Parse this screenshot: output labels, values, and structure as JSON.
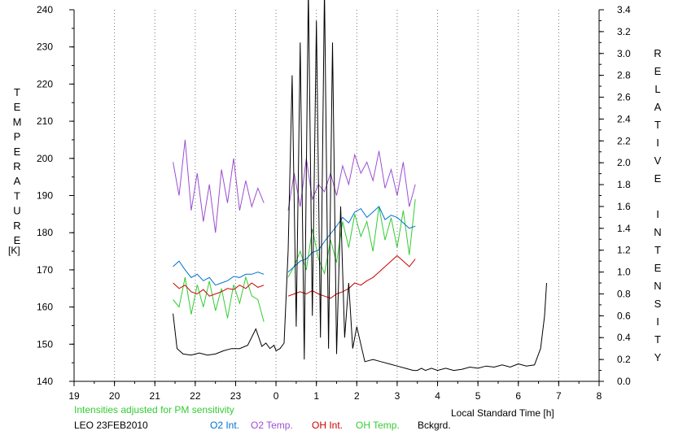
{
  "chart_data": {
    "type": "line",
    "xlabel": "Local Standard Time [h]",
    "ylabel_left": "TEMPERATURE",
    "ylabel_left_unit": "[K]",
    "ylabel_right": "RELATIVE INTENSITY",
    "note": "Intensities adjusted for PM sensitivity",
    "site_date": "LEO 23FEB2010",
    "x_ticks": [
      "19",
      "20",
      "21",
      "22",
      "23",
      "0",
      "1",
      "2",
      "3",
      "4",
      "5",
      "6",
      "7",
      "8"
    ],
    "x_range": [
      19,
      32
    ],
    "y_left_ticks": [
      "140",
      "150",
      "160",
      "170",
      "180",
      "190",
      "200",
      "210",
      "220",
      "230",
      "240"
    ],
    "y_left_range": [
      140,
      240
    ],
    "y_right_ticks": [
      "0.0",
      "0.2",
      "0.4",
      "0.6",
      "0.8",
      "1.0",
      "1.2",
      "1.4",
      "1.6",
      "1.8",
      "2.0",
      "2.2",
      "2.4",
      "2.6",
      "2.8",
      "3.0",
      "3.2",
      "3.4"
    ],
    "y_right_range": [
      0,
      3.4
    ],
    "grid": "vertical dotted at each hour",
    "legend": [
      {
        "label": "O2 Int.",
        "color": "#0070d0"
      },
      {
        "label": "O2 Temp.",
        "color": "#9b4fd0"
      },
      {
        "label": "OH Int.",
        "color": "#cc0000"
      },
      {
        "label": "OH Temp.",
        "color": "#33cc33"
      },
      {
        "label": "Bckgrd.",
        "color": "#000000"
      }
    ],
    "note_color": "#33cc33",
    "series": [
      {
        "name": "O2 Temp.",
        "color": "#9b4fd0",
        "axis": "left",
        "x": [
          21.45,
          21.6,
          21.75,
          21.9,
          22.05,
          22.2,
          22.35,
          22.5,
          22.65,
          22.8,
          22.95,
          23.1,
          23.25,
          23.4,
          23.55,
          23.7,
          24.3,
          24.45,
          24.6,
          24.75,
          24.9,
          25.05,
          25.2,
          25.35,
          25.5,
          25.65,
          25.8,
          25.95,
          26.1,
          26.25,
          26.4,
          26.55,
          26.7,
          26.85,
          27.0,
          27.15,
          27.3,
          27.45
        ],
        "y": [
          199,
          190,
          205,
          186,
          196,
          183,
          193,
          180,
          197,
          188,
          200,
          186,
          194,
          187,
          192,
          188,
          186,
          196,
          187,
          200,
          189,
          193,
          191,
          196,
          190,
          198,
          193,
          201,
          196,
          199,
          194,
          202,
          192,
          197,
          190,
          199,
          187,
          193
        ]
      },
      {
        "name": "OH Temp.",
        "color": "#33cc33",
        "axis": "left",
        "x": [
          21.45,
          21.6,
          21.75,
          21.9,
          22.05,
          22.2,
          22.35,
          22.5,
          22.65,
          22.8,
          22.95,
          23.1,
          23.25,
          23.4,
          23.55,
          23.7,
          24.3,
          24.45,
          24.6,
          24.75,
          24.9,
          25.05,
          25.2,
          25.35,
          25.5,
          25.65,
          25.8,
          25.95,
          26.1,
          26.25,
          26.4,
          26.55,
          26.7,
          26.85,
          27.0,
          27.15,
          27.3,
          27.45
        ],
        "y": [
          162,
          160,
          168,
          158,
          166,
          160,
          167,
          159,
          165,
          157,
          166,
          161,
          168,
          163,
          162,
          156,
          168,
          171,
          175,
          170,
          181,
          173,
          169,
          178,
          172,
          183,
          176,
          185,
          179,
          183,
          175,
          187,
          178,
          184,
          176,
          186,
          174,
          189
        ]
      },
      {
        "name": "O2 Int.",
        "color": "#0070d0",
        "axis": "right",
        "x": [
          21.45,
          21.6,
          21.75,
          21.9,
          22.05,
          22.2,
          22.35,
          22.5,
          22.65,
          22.8,
          22.95,
          23.1,
          23.25,
          23.4,
          23.55,
          23.7,
          24.3,
          24.45,
          24.6,
          24.75,
          24.9,
          25.05,
          25.2,
          25.35,
          25.5,
          25.65,
          25.8,
          25.95,
          26.1,
          26.25,
          26.4,
          26.55,
          26.7,
          26.85,
          27.0,
          27.15,
          27.3,
          27.45
        ],
        "y": [
          1.05,
          1.1,
          1.02,
          0.95,
          0.98,
          0.92,
          0.95,
          0.88,
          0.9,
          0.92,
          0.96,
          0.95,
          0.98,
          0.98,
          1.0,
          0.98,
          1.0,
          1.05,
          1.1,
          1.12,
          1.18,
          1.2,
          1.28,
          1.35,
          1.42,
          1.5,
          1.45,
          1.55,
          1.58,
          1.5,
          1.55,
          1.6,
          1.48,
          1.52,
          1.5,
          1.45,
          1.4,
          1.42
        ]
      },
      {
        "name": "OH Int.",
        "color": "#cc0000",
        "axis": "right",
        "x": [
          21.45,
          21.6,
          21.75,
          21.9,
          22.05,
          22.2,
          22.35,
          22.5,
          22.65,
          22.8,
          22.95,
          23.1,
          23.25,
          23.4,
          23.55,
          23.7,
          24.3,
          24.45,
          24.6,
          24.75,
          24.9,
          25.05,
          25.2,
          25.35,
          25.5,
          25.65,
          25.8,
          25.95,
          26.1,
          26.25,
          26.4,
          26.55,
          26.7,
          26.85,
          27.0,
          27.15,
          27.3,
          27.45
        ],
        "y": [
          0.9,
          0.85,
          0.88,
          0.82,
          0.8,
          0.84,
          0.78,
          0.8,
          0.82,
          0.85,
          0.84,
          0.88,
          0.85,
          0.9,
          0.86,
          0.88,
          0.78,
          0.8,
          0.82,
          0.8,
          0.83,
          0.8,
          0.78,
          0.76,
          0.8,
          0.82,
          0.85,
          0.9,
          0.88,
          0.92,
          0.95,
          1.0,
          1.05,
          1.1,
          1.15,
          1.1,
          1.05,
          1.12
        ]
      },
      {
        "name": "Bckgrd.",
        "color": "#000000",
        "axis": "right",
        "x": [
          21.45,
          21.55,
          21.7,
          21.9,
          22.1,
          22.3,
          22.5,
          22.7,
          22.9,
          23.1,
          23.3,
          23.5,
          23.65,
          23.75,
          23.85,
          23.95,
          24.0,
          24.1,
          24.2,
          24.3,
          24.4,
          24.5,
          24.6,
          24.7,
          24.8,
          24.9,
          25.0,
          25.1,
          25.2,
          25.3,
          25.4,
          25.5,
          25.6,
          25.7,
          25.8,
          25.9,
          26.0,
          26.2,
          26.4,
          26.6,
          26.8,
          27.0,
          27.2,
          27.4,
          27.5,
          27.6,
          27.7,
          27.85,
          28.0,
          28.2,
          28.4,
          28.6,
          28.8,
          29.0,
          29.2,
          29.4,
          29.6,
          29.8,
          30.0,
          30.2,
          30.4,
          30.55,
          30.65,
          30.7
        ],
        "y": [
          0.62,
          0.3,
          0.25,
          0.24,
          0.26,
          0.24,
          0.25,
          0.28,
          0.3,
          0.3,
          0.33,
          0.48,
          0.32,
          0.35,
          0.3,
          0.33,
          0.28,
          0.3,
          0.35,
          1.2,
          2.8,
          0.5,
          3.1,
          0.2,
          3.6,
          0.6,
          3.3,
          0.4,
          3.6,
          0.3,
          3.1,
          0.25,
          1.6,
          0.4,
          0.9,
          0.3,
          0.5,
          0.18,
          0.2,
          0.18,
          0.16,
          0.14,
          0.12,
          0.1,
          0.1,
          0.12,
          0.1,
          0.12,
          0.1,
          0.12,
          0.1,
          0.11,
          0.13,
          0.12,
          0.14,
          0.13,
          0.15,
          0.13,
          0.16,
          0.14,
          0.15,
          0.3,
          0.6,
          0.9
        ]
      }
    ]
  }
}
